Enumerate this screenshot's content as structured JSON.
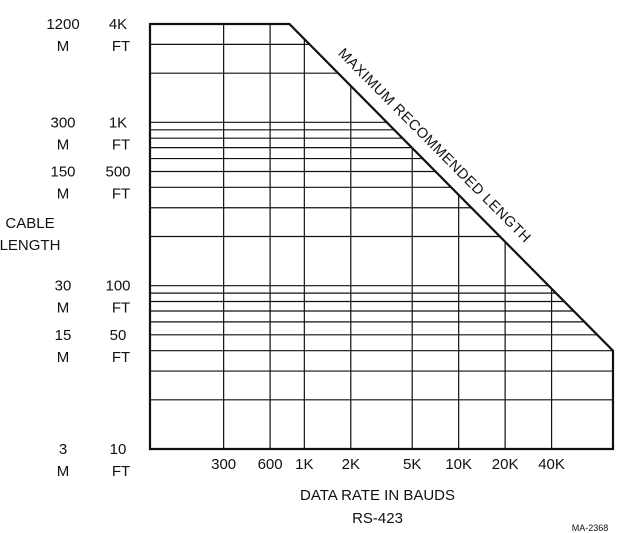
{
  "chart_data": {
    "type": "area",
    "xlabel": "DATA RATE IN BAUDS",
    "subtitle": "RS-423",
    "ylabel_lines": [
      "CABLE",
      "LENGTH"
    ],
    "x_scale": "log",
    "y_scale": "log",
    "xlim": [
      100,
      100000
    ],
    "ylim": [
      10,
      4000
    ],
    "x_ticks": [
      {
        "value": 300,
        "label": "300"
      },
      {
        "value": 600,
        "label": "600"
      },
      {
        "value": 1000,
        "label": "1K"
      },
      {
        "value": 2000,
        "label": "2K"
      },
      {
        "value": 5000,
        "label": "5K"
      },
      {
        "value": 10000,
        "label": "10K"
      },
      {
        "value": 20000,
        "label": "20K"
      },
      {
        "value": 40000,
        "label": "40K"
      }
    ],
    "y_ticks": [
      {
        "value": 4000,
        "meters": "1200",
        "m_unit": "M",
        "feet": "4K",
        "ft_unit": "FT"
      },
      {
        "value": 1000,
        "meters": "300",
        "m_unit": "M",
        "feet": "1K",
        "ft_unit": "FT"
      },
      {
        "value": 500,
        "meters": "150",
        "m_unit": "M",
        "feet": "500",
        "ft_unit": "FT"
      },
      {
        "value": 100,
        "meters": "30",
        "m_unit": "M",
        "feet": "100",
        "ft_unit": "FT"
      },
      {
        "value": 50,
        "meters": "15",
        "m_unit": "M",
        "feet": "50",
        "ft_unit": "FT"
      },
      {
        "value": 10,
        "meters": "3",
        "m_unit": "M",
        "feet": "10",
        "ft_unit": "FT"
      }
    ],
    "vertical_gridlines": [
      300,
      600,
      1000,
      2000,
      5000,
      10000,
      20000,
      40000
    ],
    "horizontal_gridlines": [
      20,
      30,
      40,
      50,
      60,
      70,
      80,
      90,
      100,
      200,
      300,
      400,
      500,
      600,
      700,
      800,
      900,
      1000,
      2000,
      3000,
      4000
    ],
    "series": [
      {
        "name": "MAXIMUM RECOMMENDED LENGTH",
        "x": [
          100,
          800,
          100000
        ],
        "y": [
          4000,
          4000,
          40
        ]
      }
    ],
    "annotation": "MAXIMUM RECOMMENDED LENGTH",
    "grid": true,
    "legend": "none"
  },
  "footer_code": "MA-2368"
}
